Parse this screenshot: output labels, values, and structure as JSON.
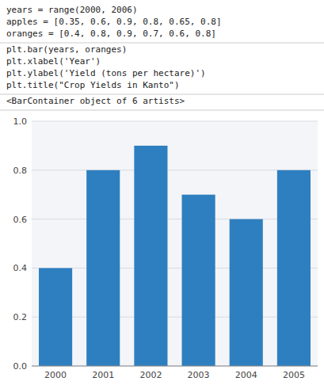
{
  "chart_data": {
    "type": "bar",
    "annotations": [
      [
        "years = range(2000, 2006)",
        "apples = [0.35, 0.6, 0.9, 0.8, 0.65, 0.8]",
        "oranges = [0.4, 0.8, 0.9, 0.7, 0.6, 0.8]"
      ],
      [
        "plt.bar(years, oranges)",
        "plt.xlabel('Year')",
        "plt.ylabel('Yield (tons per hectare)')",
        "plt.title(\"Crop Yields in Kanto\")"
      ],
      [
        "<BarContainer object of 6 artists>"
      ]
    ],
    "categories": [
      "2000",
      "2001",
      "2002",
      "2003",
      "2004",
      "2005"
    ],
    "values": [
      0.4,
      0.8,
      0.9,
      0.7,
      0.6,
      0.8
    ],
    "color": "#2e7fbf",
    "ylim": [
      0,
      1.0
    ],
    "yticks": [
      {
        "value": 0,
        "label": "0.0"
      },
      0.2,
      0.4,
      0.6,
      0.8,
      {
        "value": 1.0,
        "label": "1.0"
      }
    ],
    "grid": true
  }
}
